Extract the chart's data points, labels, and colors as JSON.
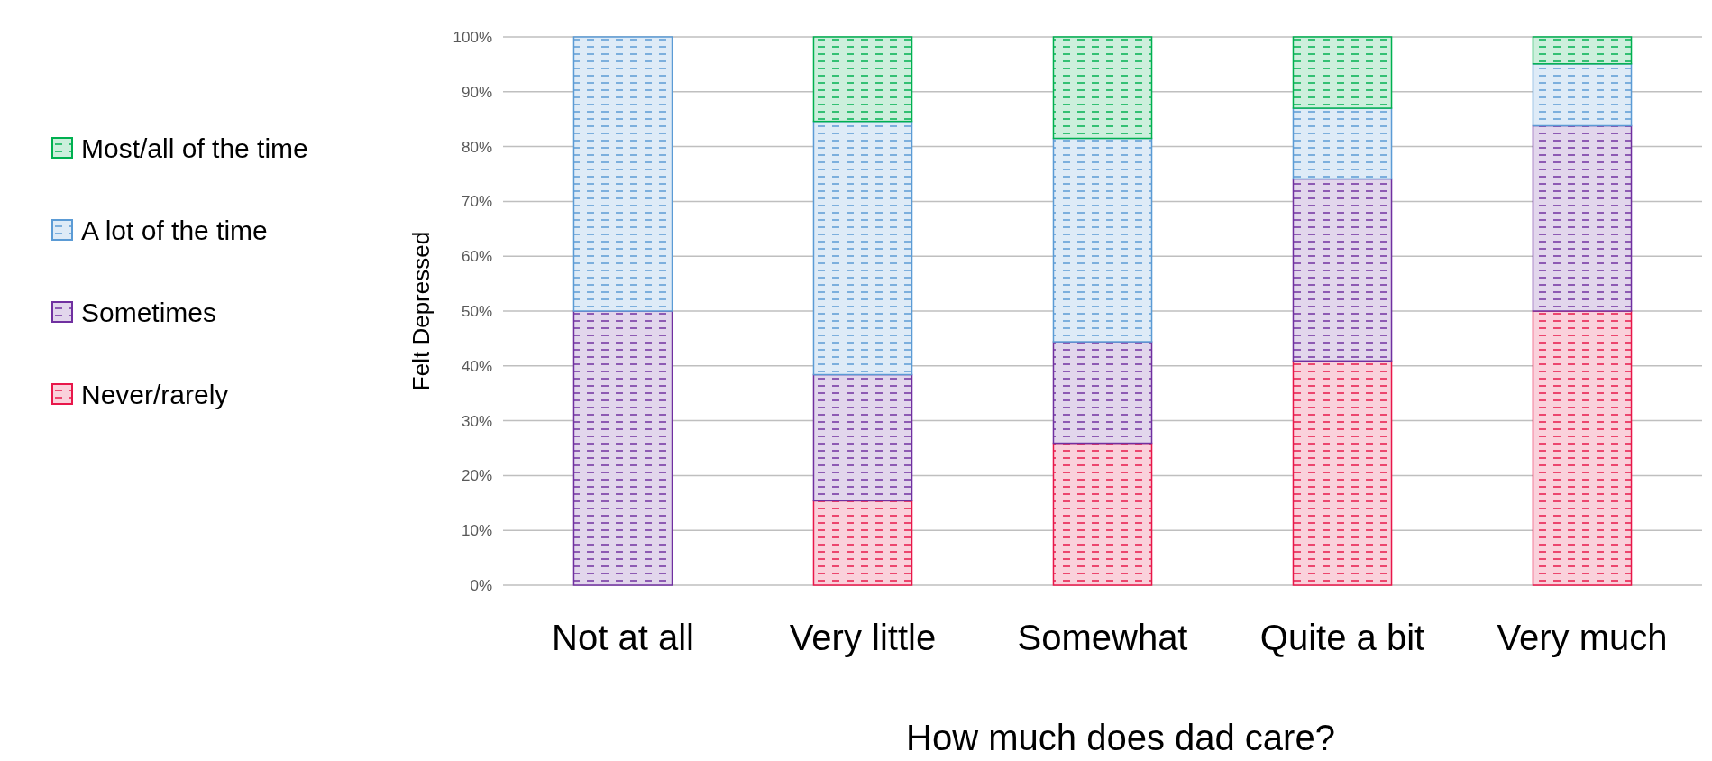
{
  "chart_data": {
    "type": "bar",
    "stacked": true,
    "xlabel": "How much does dad care?",
    "ylabel": "Felt Depressed",
    "categories": [
      "Not at all",
      "Very little",
      "Somewhat",
      "Quite a bit",
      "Very much"
    ],
    "series": [
      {
        "name": "Never/rarely",
        "color": "#e8174a",
        "values": [
          0,
          15.4,
          25.9,
          40.9,
          50.0
        ]
      },
      {
        "name": "Sometimes",
        "color": "#7030a0",
        "values": [
          50,
          23.0,
          18.5,
          33.2,
          33.8
        ]
      },
      {
        "name": "A lot of the time",
        "color": "#5b9bd5",
        "values": [
          50,
          46.2,
          37.1,
          12.9,
          11.3
        ]
      },
      {
        "name": "Most/all of the time",
        "color": "#00b050",
        "values": [
          0,
          15.4,
          18.5,
          13.0,
          4.9
        ]
      }
    ],
    "ylim": [
      0,
      100
    ],
    "yticks": [
      {
        "value": 0,
        "label": "0%"
      },
      {
        "value": 10,
        "label": "10%"
      },
      {
        "value": 20,
        "label": "20%"
      },
      {
        "value": 30,
        "label": "30%"
      },
      {
        "value": 40,
        "label": "40%"
      },
      {
        "value": 50,
        "label": "50%"
      },
      {
        "value": 60,
        "label": "60%"
      },
      {
        "value": 70,
        "label": "70%"
      },
      {
        "value": 80,
        "label": "80%"
      },
      {
        "value": 90,
        "label": "90%"
      },
      {
        "value": 100,
        "label": "100%"
      }
    ],
    "grid": "y",
    "legend": "left"
  }
}
